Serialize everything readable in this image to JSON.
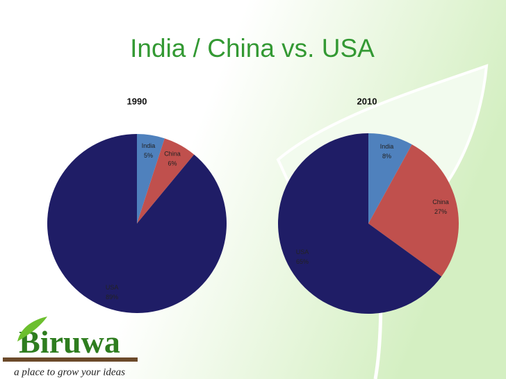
{
  "title": "India / China vs. USA",
  "logo": {
    "text": "Biruwa",
    "tagline": "a place to grow your ideas"
  },
  "chart_data": [
    {
      "type": "pie",
      "title": "1990",
      "categories": [
        "India",
        "China",
        "USA"
      ],
      "values": [
        5,
        6,
        89
      ],
      "value_labels": [
        "5%",
        "6%",
        "89%"
      ],
      "colors": [
        "#4f81bd",
        "#c0504d",
        "#1f1d66"
      ]
    },
    {
      "type": "pie",
      "title": "2010",
      "categories": [
        "India",
        "China",
        "USA"
      ],
      "values": [
        8,
        27,
        65
      ],
      "value_labels": [
        "8%",
        "27%",
        "65%"
      ],
      "colors": [
        "#4f81bd",
        "#c0504d",
        "#1f1d66"
      ]
    }
  ]
}
